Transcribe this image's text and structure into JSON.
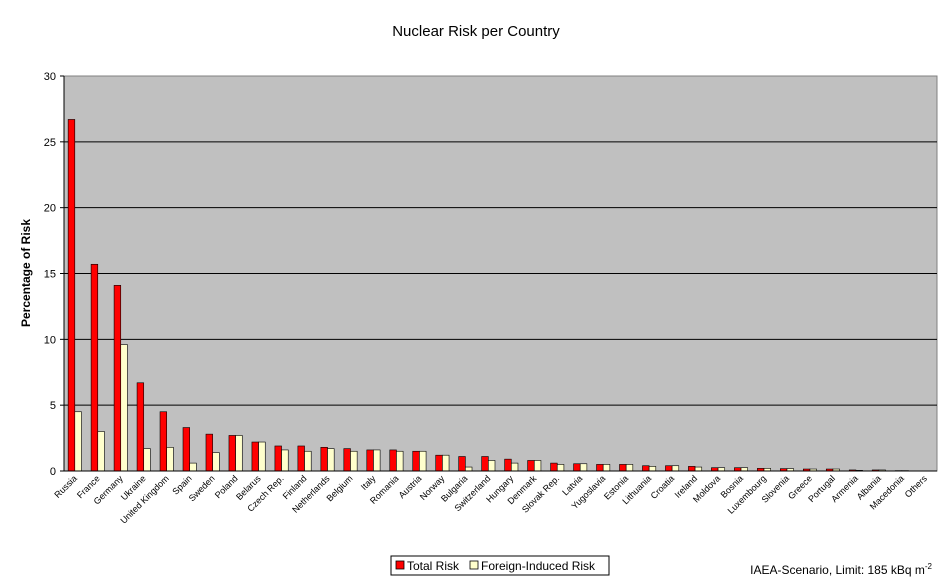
{
  "chart_data": {
    "type": "bar",
    "title": "Nuclear Risk per Country",
    "xlabel": "",
    "ylabel": "Percentage of Risk",
    "ylim": [
      0,
      30
    ],
    "yticks": [
      0,
      5,
      10,
      15,
      20,
      25,
      30
    ],
    "grid": true,
    "plot_background": "#c0c0c0",
    "legend_position": "bottom-center",
    "note": "IAEA-Scenario, Limit: 185 kBq m",
    "note_superscript": "-2",
    "categories": [
      "Russia",
      "France",
      "Germany",
      "Ukraine",
      "United Kingdom",
      "Spain",
      "Sweden",
      "Poland",
      "Belarus",
      "Czech Rep.",
      "Finland",
      "Netherlands",
      "Belgium",
      "Italy",
      "Romania",
      "Austria",
      "Norway",
      "Bulgaria",
      "Switzerland",
      "Hungary",
      "Denmark",
      "Slovak Rep.",
      "Latvia",
      "Yugoslavia",
      "Estonia",
      "Lithuania",
      "Croatia",
      "Ireland",
      "Moldova",
      "Bosnia",
      "Luxembourg",
      "Slovenia",
      "Greece",
      "Portugal",
      "Armenia",
      "Albania",
      "Macedonia",
      "Others"
    ],
    "series": [
      {
        "name": "Total Risk",
        "color": "#ff0000",
        "values": [
          26.7,
          15.7,
          14.1,
          6.7,
          4.5,
          3.3,
          2.8,
          2.7,
          2.2,
          1.9,
          1.9,
          1.8,
          1.7,
          1.6,
          1.6,
          1.5,
          1.2,
          1.1,
          1.1,
          0.9,
          0.8,
          0.6,
          0.55,
          0.5,
          0.5,
          0.4,
          0.4,
          0.35,
          0.25,
          0.25,
          0.2,
          0.18,
          0.15,
          0.15,
          0.08,
          0.08,
          0.03,
          0.0
        ]
      },
      {
        "name": "Foreign-Induced Risk",
        "color": "#ffffcc",
        "values": [
          4.5,
          3.0,
          9.6,
          1.7,
          1.8,
          0.6,
          1.4,
          2.7,
          2.2,
          1.6,
          1.5,
          1.7,
          1.5,
          1.6,
          1.5,
          1.5,
          1.2,
          0.3,
          0.8,
          0.6,
          0.8,
          0.5,
          0.55,
          0.5,
          0.5,
          0.35,
          0.4,
          0.3,
          0.25,
          0.25,
          0.2,
          0.18,
          0.15,
          0.15,
          0.05,
          0.08,
          0.03,
          0.0
        ]
      }
    ]
  }
}
